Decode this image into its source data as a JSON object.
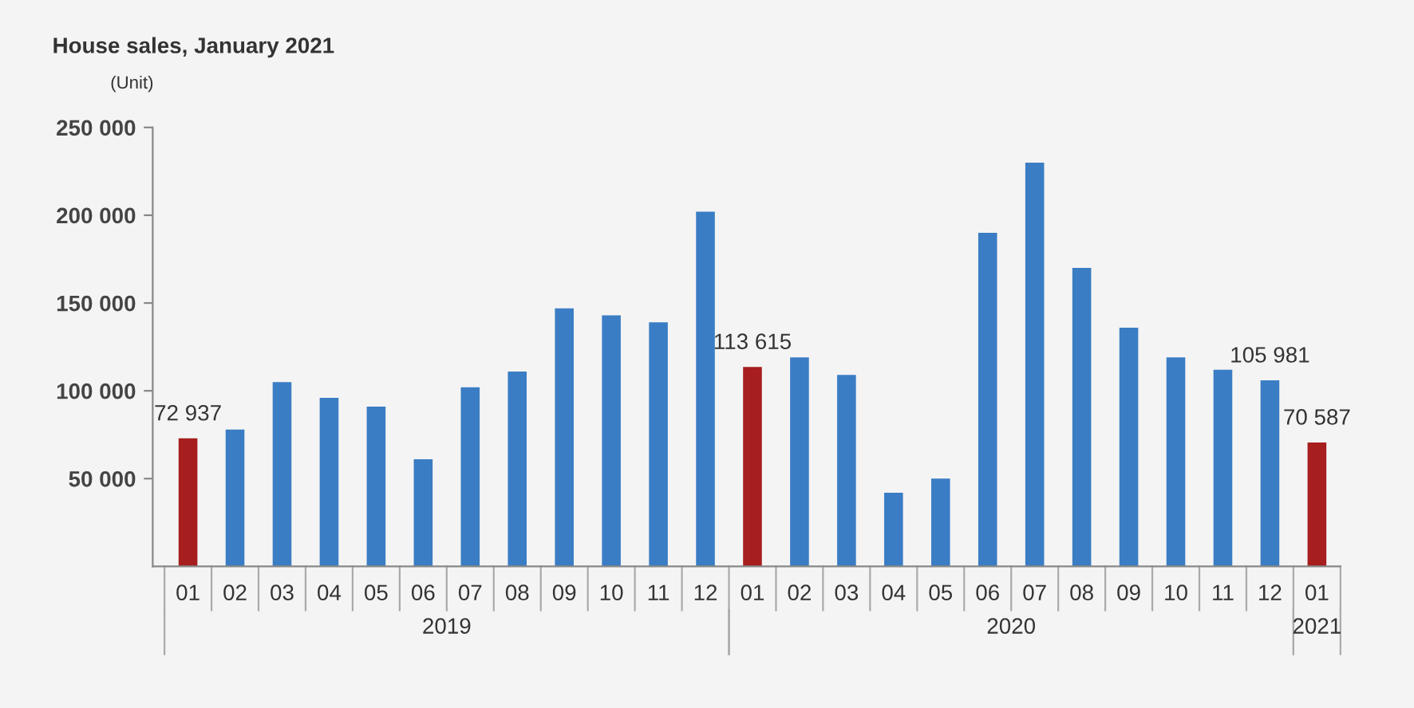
{
  "chart_data": {
    "type": "bar",
    "title": "House sales, January 2021",
    "subtitle": "(Unit)",
    "categories": [
      "01",
      "02",
      "03",
      "04",
      "05",
      "06",
      "07",
      "08",
      "09",
      "10",
      "11",
      "12",
      "01",
      "02",
      "03",
      "04",
      "05",
      "06",
      "07",
      "08",
      "09",
      "10",
      "11",
      "12",
      "01"
    ],
    "values": [
      72937,
      78000,
      105000,
      96000,
      91000,
      61000,
      102000,
      111000,
      147000,
      143000,
      139000,
      202000,
      113615,
      119000,
      109000,
      42000,
      50000,
      190000,
      230000,
      170000,
      136000,
      119000,
      112000,
      105981,
      70587
    ],
    "value_labels": [
      "72 937",
      null,
      null,
      null,
      null,
      null,
      null,
      null,
      null,
      null,
      null,
      null,
      "113 615",
      null,
      null,
      null,
      null,
      null,
      null,
      null,
      null,
      null,
      null,
      "105 981",
      "70 587"
    ],
    "colors": [
      "#a61e1e",
      "#3a7dc4",
      "#3a7dc4",
      "#3a7dc4",
      "#3a7dc4",
      "#3a7dc4",
      "#3a7dc4",
      "#3a7dc4",
      "#3a7dc4",
      "#3a7dc4",
      "#3a7dc4",
      "#3a7dc4",
      "#a61e1e",
      "#3a7dc4",
      "#3a7dc4",
      "#3a7dc4",
      "#3a7dc4",
      "#3a7dc4",
      "#3a7dc4",
      "#3a7dc4",
      "#3a7dc4",
      "#3a7dc4",
      "#3a7dc4",
      "#3a7dc4",
      "#a61e1e"
    ],
    "annotations": [
      "2019",
      "2020",
      "2021"
    ],
    "ylim": [
      0,
      250000
    ],
    "yticks": [
      {
        "value": 50000,
        "label": "50 000"
      },
      {
        "value": 100000,
        "label": "100 000"
      },
      {
        "value": 150000,
        "label": "150 000"
      },
      {
        "value": 200000,
        "label": "200 000"
      },
      {
        "value": 250000,
        "label": "250 000"
      }
    ],
    "grid": false
  }
}
